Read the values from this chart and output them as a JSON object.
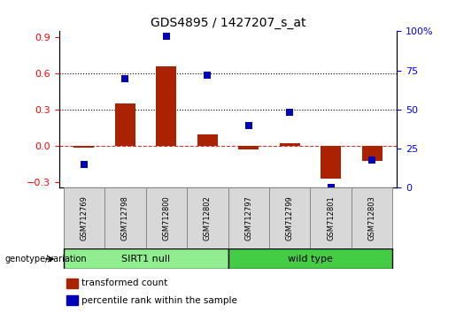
{
  "title": "GDS4895 / 1427207_s_at",
  "samples": [
    "GSM712769",
    "GSM712798",
    "GSM712800",
    "GSM712802",
    "GSM712797",
    "GSM712799",
    "GSM712801",
    "GSM712803"
  ],
  "transformed_count": [
    -0.02,
    0.35,
    0.66,
    0.09,
    -0.03,
    0.02,
    -0.27,
    -0.13
  ],
  "percentile_rank": [
    15,
    70,
    97,
    72,
    40,
    48,
    0,
    18
  ],
  "groups": [
    {
      "label": "SIRT1 null",
      "start": 0,
      "end": 4,
      "color": "#90EE90"
    },
    {
      "label": "wild type",
      "start": 4,
      "end": 8,
      "color": "#44CC44"
    }
  ],
  "bar_color": "#AA2200",
  "dot_color": "#0000BB",
  "ylim_left": [
    -0.35,
    0.95
  ],
  "ylim_right": [
    0,
    100
  ],
  "yticks_left": [
    -0.3,
    0.0,
    0.3,
    0.6,
    0.9
  ],
  "yticks_right": [
    0,
    25,
    50,
    75,
    100
  ],
  "ytick_labels_right": [
    "0",
    "25",
    "50",
    "75",
    "100%"
  ],
  "hlines": [
    0.0,
    0.3,
    0.6
  ],
  "hline_styles": [
    "dashed",
    "dotted",
    "dotted"
  ],
  "hline_colors": [
    "#CC3333",
    "black",
    "black"
  ],
  "legend_items": [
    "transformed count",
    "percentile rank within the sample"
  ],
  "legend_colors": [
    "#AA2200",
    "#0000BB"
  ],
  "genotype_label": "genotype/variation",
  "bar_width": 0.5,
  "dot_size": 40,
  "title_fontsize": 10,
  "tick_fontsize": 8,
  "label_fontsize": 7
}
